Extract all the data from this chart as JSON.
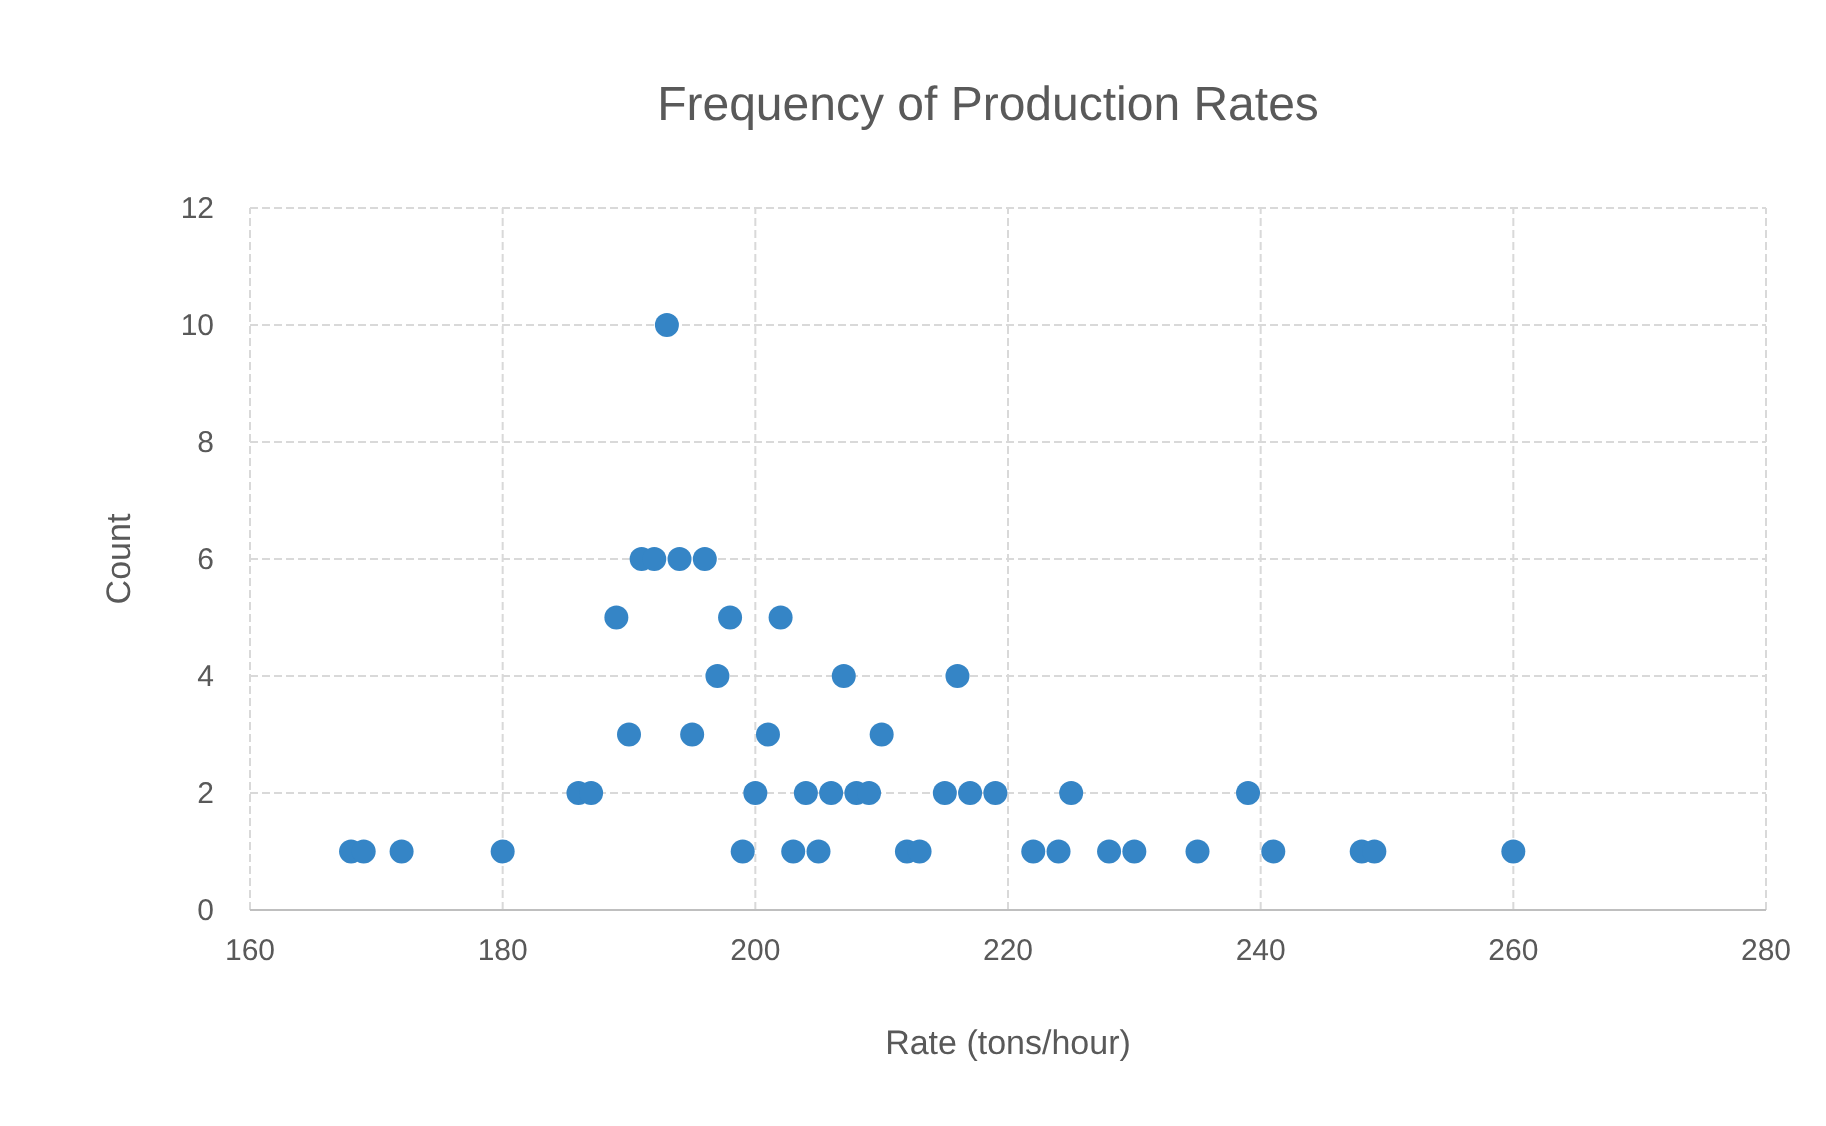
{
  "chart_data": {
    "type": "scatter",
    "title": "Frequency of Production Rates",
    "xlabel": "Rate (tons/hour)",
    "ylabel": "Count",
    "x": [
      168,
      169,
      172,
      180,
      186,
      187,
      189,
      190,
      191,
      192,
      193,
      194,
      195,
      196,
      197,
      198,
      199,
      200,
      201,
      202,
      203,
      204,
      205,
      206,
      207,
      208,
      209,
      210,
      212,
      213,
      215,
      216,
      217,
      219,
      222,
      224,
      225,
      228,
      230,
      235,
      239,
      241,
      248,
      249,
      260
    ],
    "values": [
      1,
      1,
      1,
      1,
      2,
      2,
      5,
      3,
      6,
      6,
      10,
      6,
      3,
      6,
      4,
      5,
      1,
      2,
      3,
      5,
      1,
      2,
      1,
      2,
      4,
      2,
      2,
      3,
      1,
      1,
      2,
      4,
      2,
      2,
      1,
      1,
      2,
      1,
      1,
      1,
      2,
      1,
      1,
      1,
      1
    ],
    "color": "#3585c6",
    "marker": "circle",
    "xlim": [
      160,
      280
    ],
    "xticks": [
      160,
      180,
      200,
      220,
      240,
      260,
      280
    ],
    "ylim": [
      0,
      12
    ],
    "yticks": [
      0,
      2,
      4,
      6,
      8,
      10,
      12
    ],
    "grid": true
  }
}
